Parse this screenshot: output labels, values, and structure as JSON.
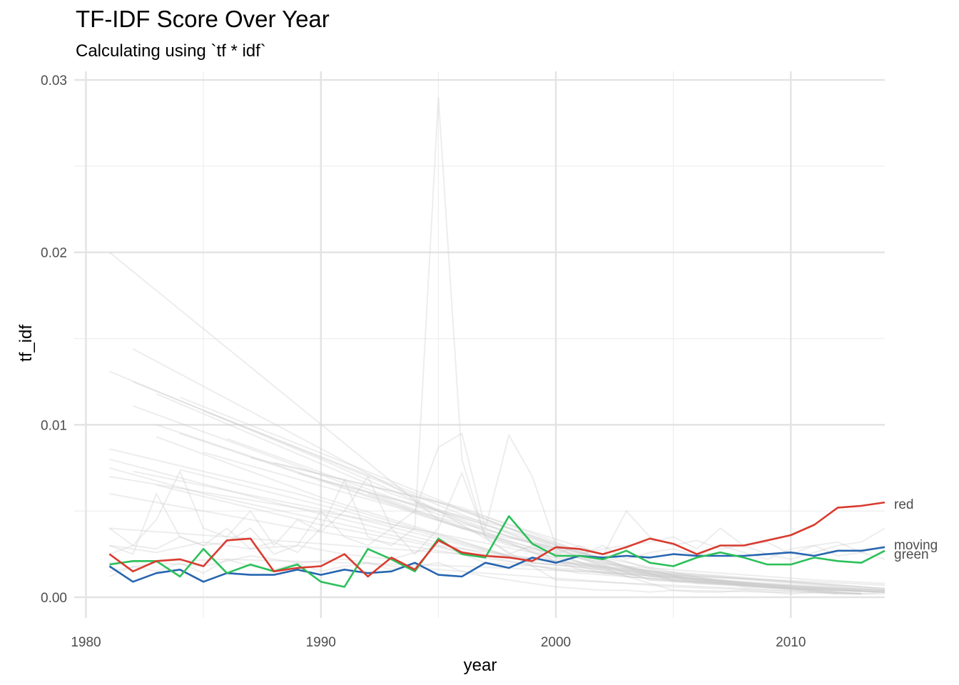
{
  "chart_data": {
    "type": "line",
    "title": "TF-IDF Score Over Year",
    "subtitle": "Calculating using `tf * idf`",
    "xlabel": "year",
    "ylabel": "tf_idf",
    "xlim": [
      1979.5,
      2014
    ],
    "ylim": [
      -0.0012,
      0.0305
    ],
    "x_ticks": [
      1980,
      1990,
      2000,
      2010
    ],
    "y_ticks": [
      0.0,
      0.01,
      0.02,
      0.03
    ],
    "x_tick_labels": [
      "1980",
      "1990",
      "2000",
      "2010"
    ],
    "y_tick_labels": [
      "0.00",
      "0.01",
      "0.02",
      "0.03"
    ],
    "grid": true,
    "legend": "none (labels at line ends)",
    "highlighted_series": [
      {
        "name": "red",
        "color": "#d93b2f",
        "x": [
          1981,
          1982,
          1983,
          1984,
          1985,
          1986,
          1987,
          1988,
          1989,
          1990,
          1991,
          1992,
          1993,
          1994,
          1995,
          1996,
          1997,
          1998,
          1999,
          2000,
          2001,
          2002,
          2003,
          2004,
          2005,
          2006,
          2007,
          2008,
          2009,
          2010,
          2011,
          2012,
          2013,
          2014
        ],
        "values": [
          0.0025,
          0.0015,
          0.0021,
          0.0022,
          0.0018,
          0.0033,
          0.0034,
          0.0015,
          0.0017,
          0.0018,
          0.0025,
          0.0012,
          0.0023,
          0.0016,
          0.0033,
          0.0026,
          0.0024,
          0.0023,
          0.0021,
          0.0029,
          0.0028,
          0.0025,
          0.0029,
          0.0034,
          0.0031,
          0.0025,
          0.003,
          0.003,
          0.0033,
          0.0036,
          0.0042,
          0.0052,
          0.0053,
          0.0055
        ]
      },
      {
        "name": "moving",
        "color": "#2765b0",
        "x": [
          1981,
          1982,
          1983,
          1984,
          1985,
          1986,
          1987,
          1988,
          1989,
          1990,
          1991,
          1992,
          1993,
          1994,
          1995,
          1996,
          1997,
          1998,
          1999,
          2000,
          2001,
          2002,
          2003,
          2004,
          2005,
          2006,
          2007,
          2008,
          2009,
          2010,
          2011,
          2012,
          2013,
          2014
        ],
        "values": [
          0.0018,
          0.0009,
          0.0014,
          0.0016,
          0.0009,
          0.0014,
          0.0013,
          0.0013,
          0.0016,
          0.0013,
          0.0016,
          0.0014,
          0.0015,
          0.002,
          0.0013,
          0.0012,
          0.002,
          0.0017,
          0.0023,
          0.002,
          0.0024,
          0.0023,
          0.0024,
          0.0023,
          0.0025,
          0.0024,
          0.0024,
          0.0024,
          0.0025,
          0.0026,
          0.0024,
          0.0027,
          0.0027,
          0.0029
        ]
      },
      {
        "name": "green",
        "color": "#2cc05a",
        "x": [
          1981,
          1982,
          1983,
          1984,
          1985,
          1986,
          1987,
          1988,
          1989,
          1990,
          1991,
          1992,
          1993,
          1994,
          1995,
          1996,
          1997,
          1998,
          1999,
          2000,
          2001,
          2002,
          2003,
          2004,
          2005,
          2006,
          2007,
          2008,
          2009,
          2010,
          2011,
          2012,
          2013,
          2014
        ],
        "values": [
          0.0019,
          0.0021,
          0.0021,
          0.0012,
          0.0028,
          0.0014,
          0.0019,
          0.0015,
          0.0019,
          0.0009,
          0.0006,
          0.0028,
          0.0022,
          0.0015,
          0.0034,
          0.0025,
          0.0023,
          0.0047,
          0.0031,
          0.0024,
          0.0024,
          0.0022,
          0.0027,
          0.002,
          0.0018,
          0.0023,
          0.0026,
          0.0023,
          0.0019,
          0.0019,
          0.0023,
          0.0021,
          0.002,
          0.0027
        ]
      }
    ],
    "background_series": {
      "color": "#cccccc",
      "description_note": "",
      "lines": [
        {
          "x": [
            1981,
            1995,
            2005,
            2013
          ],
          "values": [
            0.02,
            0.0045,
            0.0004,
            0.0002
          ]
        },
        {
          "x": [
            1982,
            1995,
            2000,
            2013
          ],
          "values": [
            0.0144,
            0.005,
            0.001,
            0.0002
          ]
        },
        {
          "x": [
            1981,
            1990,
            2000,
            2014
          ],
          "values": [
            0.0131,
            0.008,
            0.002,
            0.0005
          ]
        },
        {
          "x": [
            1982,
            1992,
            2002,
            2013
          ],
          "values": [
            0.0125,
            0.007,
            0.0015,
            0.0003
          ]
        },
        {
          "x": [
            1983,
            1993,
            2004,
            2014
          ],
          "values": [
            0.0118,
            0.006,
            0.001,
            0.0004
          ]
        },
        {
          "x": [
            1984,
            1994,
            2003,
            2013
          ],
          "values": [
            0.0116,
            0.0062,
            0.0012,
            0.0002
          ]
        },
        {
          "x": [
            1985,
            1995,
            2006,
            2014
          ],
          "values": [
            0.0108,
            0.0055,
            0.0008,
            0.0003
          ]
        },
        {
          "x": [
            1982,
            1991,
            2001,
            2012
          ],
          "values": [
            0.0111,
            0.0066,
            0.0016,
            0.0002
          ]
        },
        {
          "x": [
            1983,
            1994,
            2005,
            2014
          ],
          "values": [
            0.01,
            0.005,
            0.001,
            0.0004
          ]
        },
        {
          "x": [
            1981,
            1989,
            1999,
            2010
          ],
          "values": [
            0.0086,
            0.006,
            0.002,
            0.0005
          ]
        },
        {
          "x": [
            1984,
            1996,
            2008,
            2014
          ],
          "values": [
            0.0095,
            0.004,
            0.0006,
            0.0003
          ]
        },
        {
          "x": [
            1986,
            1995,
            2004,
            2013
          ],
          "values": [
            0.0092,
            0.0048,
            0.001,
            0.0002
          ]
        },
        {
          "x": [
            1983,
            1990,
            1998,
            2011
          ],
          "values": [
            0.0093,
            0.0058,
            0.0024,
            0.0004
          ]
        },
        {
          "x": [
            1985,
            1993,
            2002,
            2014
          ],
          "values": [
            0.0084,
            0.0053,
            0.0014,
            0.0004
          ]
        },
        {
          "x": [
            1981,
            1988,
            1997,
            2009
          ],
          "values": [
            0.008,
            0.0055,
            0.0025,
            0.0006
          ]
        },
        {
          "x": [
            1981,
            1985,
            1995,
            2007
          ],
          "values": [
            0.0075,
            0.006,
            0.003,
            0.0008
          ]
        },
        {
          "x": [
            1982,
            1990,
            1999,
            2014
          ],
          "values": [
            0.0073,
            0.0051,
            0.002,
            0.0005
          ]
        },
        {
          "x": [
            1981,
            1992,
            2003,
            2014
          ],
          "values": [
            0.007,
            0.0045,
            0.0015,
            0.0005
          ]
        },
        {
          "x": [
            1983,
            1990,
            2000,
            2013
          ],
          "values": [
            0.0065,
            0.0042,
            0.0016,
            0.0004
          ]
        },
        {
          "x": [
            1981,
            1989,
            2001,
            2012
          ],
          "values": [
            0.006,
            0.004,
            0.0014,
            0.0003
          ]
        },
        {
          "x": [
            1984,
            1991,
            1999,
            2010
          ],
          "values": [
            0.0074,
            0.005,
            0.002,
            0.0006
          ]
        },
        {
          "x": [
            1987,
            1995,
            2003,
            2014
          ],
          "values": [
            0.0081,
            0.0055,
            0.0016,
            0.0004
          ]
        },
        {
          "x": [
            1988,
            1996,
            2004,
            2014
          ],
          "values": [
            0.0078,
            0.0052,
            0.0012,
            0.0003
          ]
        },
        {
          "x": [
            1989,
            1996,
            2005,
            2013
          ],
          "values": [
            0.0072,
            0.0046,
            0.001,
            0.0002
          ]
        },
        {
          "x": [
            1990,
            1998,
            2005,
            2014
          ],
          "values": [
            0.0068,
            0.004,
            0.0009,
            0.0003
          ]
        },
        {
          "x": [
            1981,
            1982,
            1983,
            1984,
            1985,
            1986,
            1987,
            1988,
            1989,
            1990,
            1991,
            1992,
            1993,
            1994,
            1995,
            1996,
            1997,
            1998,
            1999,
            2000,
            2001,
            2002,
            2003,
            2004,
            2005,
            2006,
            2007,
            2008,
            2009,
            2010,
            2011,
            2012,
            2013,
            2014
          ],
          "values": [
            0.003,
            0.0025,
            0.006,
            0.0035,
            0.003,
            0.004,
            0.0028,
            0.0032,
            0.0026,
            0.004,
            0.0068,
            0.0035,
            0.003,
            0.004,
            0.029,
            0.008,
            0.0035,
            0.003,
            0.0028,
            0.0025,
            0.003,
            0.0024,
            0.005,
            0.0035,
            0.003,
            0.0033,
            0.0028,
            0.003,
            0.0025,
            0.0022,
            0.0026,
            0.003,
            0.0032,
            0.004
          ]
        },
        {
          "x": [
            1981,
            1982,
            1983,
            1984,
            1985,
            1986,
            1987,
            1988,
            1989,
            1990,
            1991,
            1992,
            1993,
            1994,
            1995,
            1996,
            1997,
            1998,
            1999,
            2000,
            2001,
            2002,
            2003,
            2004,
            2005,
            2006,
            2007,
            2008,
            2009,
            2010,
            2011,
            2012,
            2013,
            2014
          ],
          "values": [
            0.004,
            0.003,
            0.0045,
            0.0073,
            0.004,
            0.0035,
            0.005,
            0.003,
            0.0045,
            0.0038,
            0.005,
            0.007,
            0.004,
            0.005,
            0.0087,
            0.0095,
            0.004,
            0.0094,
            0.007,
            0.003,
            0.0025,
            0.0028,
            0.003,
            0.0032,
            0.0035,
            0.0028,
            0.004,
            0.003,
            0.0032,
            0.0025,
            0.003,
            0.0032,
            0.0026,
            0.003
          ]
        },
        {
          "x": [
            1981,
            1982,
            1983,
            1984,
            1985,
            1986,
            1987,
            1988,
            1989,
            1990,
            1991,
            1992,
            1993,
            1994,
            1995,
            1996,
            1997,
            1998,
            1999,
            2000,
            2001,
            2002,
            2003,
            2004,
            2005,
            2006,
            2007,
            2008,
            2009,
            2010,
            2011,
            2012,
            2013,
            2014
          ],
          "values": [
            0.0025,
            0.003,
            0.0028,
            0.0035,
            0.003,
            0.0032,
            0.004,
            0.0025,
            0.003,
            0.005,
            0.0035,
            0.003,
            0.004,
            0.0025,
            0.004,
            0.0072,
            0.0035,
            0.0025,
            0.003,
            0.002,
            0.0024,
            0.003,
            0.0022,
            0.0026,
            0.0028,
            0.0024,
            0.003,
            0.0026,
            0.0022,
            0.0028,
            0.003,
            0.0024,
            0.0026,
            0.0022
          ]
        },
        {
          "x": [
            1981,
            1982,
            1983,
            1984,
            1985,
            1986,
            1987,
            1988,
            1989,
            1990,
            1991,
            1992,
            1993,
            1994,
            1995,
            1996,
            1997,
            1998,
            1999,
            2000,
            2001,
            2002,
            2003,
            2004,
            2005,
            2006,
            2007,
            2008,
            2009,
            2010,
            2011,
            2012,
            2013,
            2014
          ],
          "values": [
            0.0012,
            0.0018,
            0.0015,
            0.002,
            0.0014,
            0.0022,
            0.0018,
            0.0016,
            0.002,
            0.0015,
            0.0018,
            0.002,
            0.0016,
            0.0018,
            0.002,
            0.0015,
            0.0012,
            0.001,
            0.0008,
            0.0006,
            0.0005,
            0.0004,
            0.0004,
            0.0003,
            0.0004,
            0.0003,
            0.0003,
            0.0004,
            0.0003,
            0.0002,
            0.0003,
            0.0002,
            0.0002,
            0.0003
          ]
        },
        {
          "x": [
            1981,
            1983,
            1985,
            1987,
            1989,
            1991,
            1993,
            1995,
            1997,
            1999,
            2001,
            2003,
            2005,
            2007,
            2009,
            2011,
            2013,
            2014
          ],
          "values": [
            0.003,
            0.0026,
            0.0032,
            0.0028,
            0.003,
            0.0025,
            0.0022,
            0.003,
            0.002,
            0.0018,
            0.0016,
            0.0012,
            0.001,
            0.0008,
            0.0006,
            0.0005,
            0.0004,
            0.0004
          ]
        },
        {
          "x": [
            1981,
            1983,
            1985,
            1987,
            1989,
            1991,
            1993,
            1995,
            1997,
            1999,
            2001,
            2003,
            2005,
            2007,
            2009,
            2011,
            2013,
            2014
          ],
          "values": [
            0.0015,
            0.002,
            0.0018,
            0.0024,
            0.002,
            0.0022,
            0.0018,
            0.0016,
            0.0014,
            0.0012,
            0.001,
            0.0008,
            0.0006,
            0.0005,
            0.0004,
            0.0003,
            0.0002,
            0.0002
          ]
        },
        {
          "x": [
            1981,
            1986,
            1991,
            1996,
            2001,
            2006,
            2011,
            2014
          ],
          "values": [
            0.004,
            0.0035,
            0.003,
            0.0025,
            0.002,
            0.0015,
            0.001,
            0.0008
          ]
        },
        {
          "x": [
            1981,
            1986,
            1991,
            1996,
            2001,
            2006,
            2011,
            2014
          ],
          "values": [
            0.002,
            0.0022,
            0.002,
            0.0018,
            0.0015,
            0.0012,
            0.0009,
            0.0007
          ]
        },
        {
          "x": [
            1992,
            1996,
            2000,
            2004,
            2008,
            2012,
            2014
          ],
          "values": [
            0.006,
            0.004,
            0.0025,
            0.0015,
            0.0008,
            0.0004,
            0.0003
          ]
        },
        {
          "x": [
            1994,
            1998,
            2002,
            2006,
            2010,
            2014
          ],
          "values": [
            0.0055,
            0.0035,
            0.002,
            0.001,
            0.0005,
            0.0003
          ]
        },
        {
          "x": [
            1997,
            2000,
            2003,
            2006,
            2009,
            2012,
            2014
          ],
          "values": [
            0.0045,
            0.003,
            0.0018,
            0.001,
            0.0006,
            0.0004,
            0.0003
          ]
        }
      ]
    },
    "end_labels": [
      {
        "text": "red",
        "series": "red",
        "value": 0.0055
      },
      {
        "text": "moving",
        "series": "moving",
        "value": 0.0029
      },
      {
        "text": "green",
        "series": "green",
        "value": 0.0027
      }
    ]
  }
}
